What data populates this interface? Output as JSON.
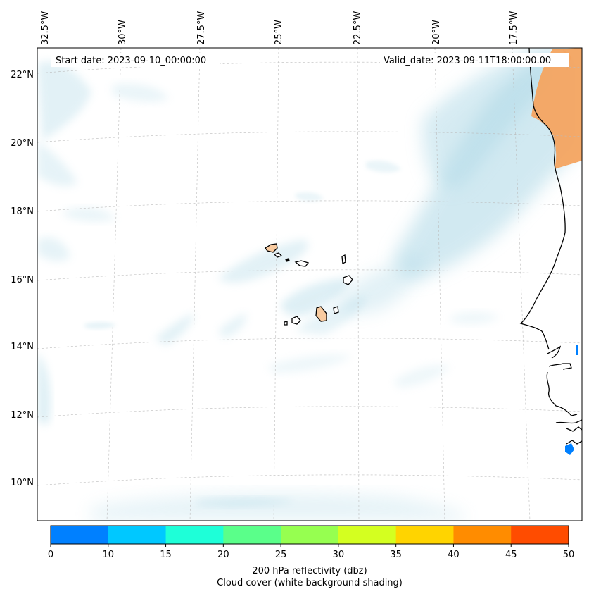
{
  "header": {
    "start_date": "Start date: 2023-09-10_00:00:00",
    "valid_date": "Valid_date: 2023-09-11T18:00:00.00"
  },
  "axes": {
    "lon_labels": [
      "32.5°W",
      "30°W",
      "27.5°W",
      "25°W",
      "22.5°W",
      "20°W",
      "17.5°W"
    ],
    "lat_labels": [
      "22°N",
      "20°N",
      "18°N",
      "16°N",
      "14°N",
      "12°N",
      "10°N"
    ],
    "gridlines": true
  },
  "colorbar": {
    "ticks": [
      "0",
      "10",
      "15",
      "20",
      "25",
      "30",
      "35",
      "40",
      "45",
      "50"
    ],
    "colors": [
      "#0080ff",
      "#00c8ff",
      "#1effd8",
      "#5aff8a",
      "#96ff50",
      "#d4ff20",
      "#ffd400",
      "#ff8c00",
      "#ff4c00"
    ],
    "label_line1": "200 hPa reflectivity (dbz)",
    "label_line2": "Cloud cover (white background shading)"
  },
  "colors": {
    "cloud": "#add8e6",
    "land_outline": "#000000",
    "reflectivity_high": "#f4a460"
  }
}
